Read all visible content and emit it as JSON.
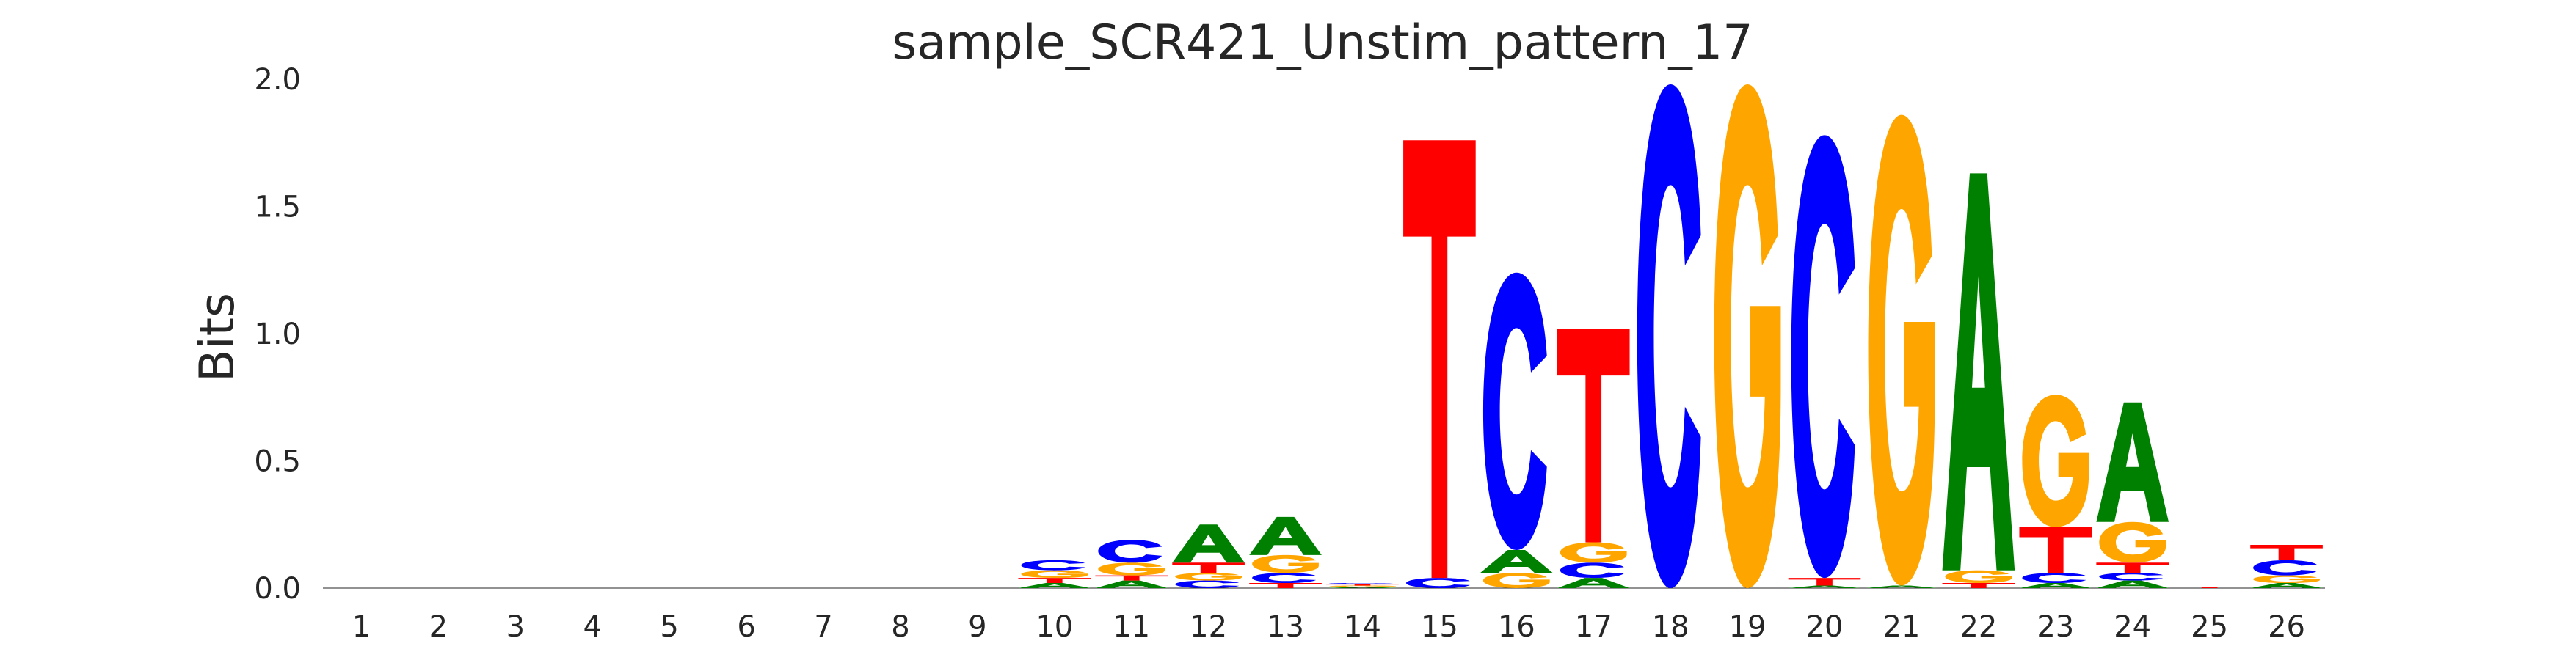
{
  "chart_data": {
    "type": "sequence-logo",
    "title": "sample_SCR421_Unstim_pattern_17",
    "xlabel": "",
    "ylabel": "Bits",
    "ylim": [
      0,
      2.0
    ],
    "yticks": [
      "0.0",
      "0.5",
      "1.0",
      "1.5",
      "2.0"
    ],
    "positions": [
      "1",
      "2",
      "3",
      "4",
      "5",
      "6",
      "7",
      "8",
      "9",
      "10",
      "11",
      "12",
      "13",
      "14",
      "15",
      "16",
      "17",
      "18",
      "19",
      "20",
      "21",
      "22",
      "23",
      "24",
      "25",
      "26"
    ],
    "colors": {
      "A": "#008000",
      "C": "#0000ff",
      "G": "#ffa500",
      "T": "#ff0000"
    },
    "stacks": [
      [],
      [],
      [],
      [],
      [],
      [],
      [],
      [],
      [],
      [
        [
          "A",
          0.02
        ],
        [
          "T",
          0.02
        ],
        [
          "G",
          0.03
        ],
        [
          "C",
          0.04
        ]
      ],
      [
        [
          "A",
          0.03
        ],
        [
          "T",
          0.02
        ],
        [
          "G",
          0.05
        ],
        [
          "C",
          0.09
        ]
      ],
      [
        [
          "C",
          0.03
        ],
        [
          "G",
          0.03
        ],
        [
          "T",
          0.04
        ],
        [
          "A",
          0.15
        ]
      ],
      [
        [
          "T",
          0.02
        ],
        [
          "C",
          0.04
        ],
        [
          "G",
          0.07
        ],
        [
          "A",
          0.15
        ]
      ],
      [
        [
          "A",
          0.005
        ],
        [
          "G",
          0.005
        ],
        [
          "T",
          0.005
        ],
        [
          "C",
          0.005
        ]
      ],
      [
        [
          "C",
          0.04
        ],
        [
          "T",
          1.72
        ]
      ],
      [
        [
          "G",
          0.06
        ],
        [
          "A",
          0.09
        ],
        [
          "C",
          1.09
        ]
      ],
      [
        [
          "A",
          0.04
        ],
        [
          "C",
          0.06
        ],
        [
          "G",
          0.08
        ],
        [
          "T",
          0.84
        ]
      ],
      [
        [
          "C",
          1.98
        ]
      ],
      [
        [
          "G",
          1.98
        ]
      ],
      [
        [
          "A",
          0.01
        ],
        [
          "T",
          0.03
        ],
        [
          "C",
          1.74
        ]
      ],
      [
        [
          "A",
          0.01
        ],
        [
          "G",
          1.85
        ]
      ],
      [
        [
          "T",
          0.02
        ],
        [
          "G",
          0.05
        ],
        [
          "A",
          1.56
        ]
      ],
      [
        [
          "A",
          0.02
        ],
        [
          "C",
          0.04
        ],
        [
          "T",
          0.18
        ],
        [
          "G",
          0.52
        ]
      ],
      [
        [
          "A",
          0.03
        ],
        [
          "C",
          0.03
        ],
        [
          "T",
          0.04
        ],
        [
          "G",
          0.16
        ],
        [
          "A",
          0.47
        ]
      ],
      [
        [
          "T",
          0.005
        ]
      ],
      [
        [
          "A",
          0.02
        ],
        [
          "G",
          0.03
        ],
        [
          "C",
          0.06
        ],
        [
          "T",
          0.06
        ]
      ]
    ]
  }
}
